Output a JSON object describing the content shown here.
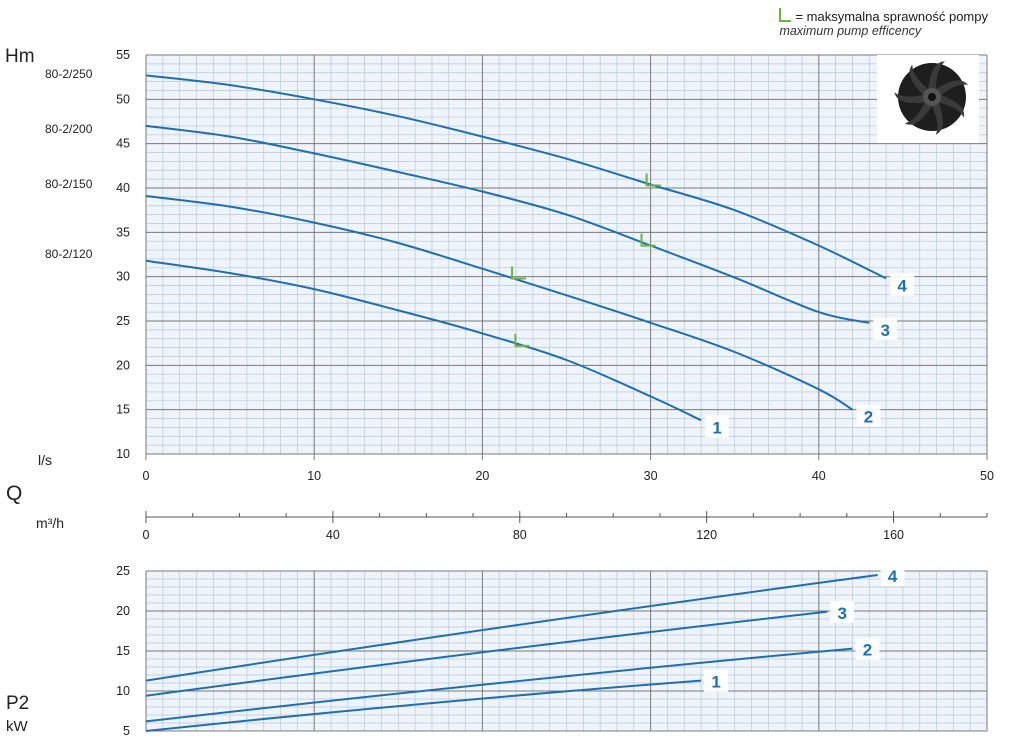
{
  "legend": {
    "line1": "= maksymalna sprawność pompy",
    "line2": "maximum pump efficency"
  },
  "labels": {
    "hm": "Hm",
    "q": "Q",
    "ls": "l/s",
    "m3h": "m³/h",
    "p2": "P2",
    "kw": "kW"
  },
  "models": [
    "80-2/250",
    "80-2/200",
    "80-2/150",
    "80-2/120"
  ],
  "colors": {
    "curve": "#1f6fad",
    "grid_major": "#7a7a7a",
    "grid_minor": "#b9c8d4",
    "bg": "#eef4fa",
    "eff": "#6db33f"
  },
  "icons": {
    "impeller": "impeller-icon"
  },
  "chart_data": [
    {
      "type": "line",
      "title": "",
      "xlabel": "l/s",
      "ylabel": "Hm",
      "xlim": [
        0,
        50
      ],
      "ylim": [
        10,
        55
      ],
      "x_ticks": [
        0,
        10,
        20,
        30,
        40,
        50
      ],
      "y_ticks": [
        10,
        15,
        20,
        25,
        30,
        35,
        40,
        45,
        50,
        55
      ],
      "grid": true,
      "series": [
        {
          "name": "1",
          "x": [
            0,
            5,
            10,
            15,
            20,
            25,
            30,
            33
          ],
          "y": [
            31.8,
            30.4,
            28.6,
            26.2,
            23.6,
            20.6,
            16.5,
            13.8
          ]
        },
        {
          "name": "2",
          "x": [
            0,
            5,
            10,
            15,
            20,
            25,
            30,
            35,
            40,
            42
          ],
          "y": [
            39.1,
            37.9,
            36.1,
            33.8,
            30.9,
            27.9,
            24.8,
            21.5,
            17.3,
            15.0
          ]
        },
        {
          "name": "3",
          "x": [
            0,
            5,
            10,
            15,
            20,
            25,
            30,
            35,
            40,
            43
          ],
          "y": [
            47.0,
            45.8,
            43.9,
            41.8,
            39.6,
            37.0,
            33.5,
            29.9,
            26.0,
            24.8
          ]
        },
        {
          "name": "4",
          "x": [
            0,
            5,
            10,
            15,
            20,
            25,
            30,
            35,
            40,
            44
          ],
          "y": [
            52.7,
            51.6,
            50.0,
            48.1,
            45.8,
            43.3,
            40.4,
            37.5,
            33.5,
            29.8
          ]
        }
      ],
      "efficiency_points": [
        {
          "x": 22.2,
          "y": 22.2
        },
        {
          "x": 22.0,
          "y": 29.8
        },
        {
          "x": 29.7,
          "y": 33.5
        },
        {
          "x": 30.0,
          "y": 40.3
        }
      ]
    },
    {
      "type": "axis",
      "xlabel": "m³/h",
      "xlim": [
        0,
        180
      ],
      "x_ticks": [
        0,
        40,
        80,
        120,
        160
      ]
    },
    {
      "type": "line",
      "title": "",
      "xlabel": "l/s",
      "ylabel": "P2 kW",
      "xlim": [
        0,
        50
      ],
      "ylim": [
        5,
        25
      ],
      "y_ticks": [
        5,
        10,
        15,
        20,
        25
      ],
      "grid": true,
      "series": [
        {
          "name": "1",
          "x": [
            0,
            33
          ],
          "y": [
            5.0,
            11.3
          ]
        },
        {
          "name": "2",
          "x": [
            0,
            42
          ],
          "y": [
            6.2,
            15.3
          ]
        },
        {
          "name": "3",
          "x": [
            0,
            40.5
          ],
          "y": [
            9.4,
            19.9
          ]
        },
        {
          "name": "4",
          "x": [
            0,
            43.5
          ],
          "y": [
            11.3,
            24.5
          ]
        }
      ]
    }
  ]
}
